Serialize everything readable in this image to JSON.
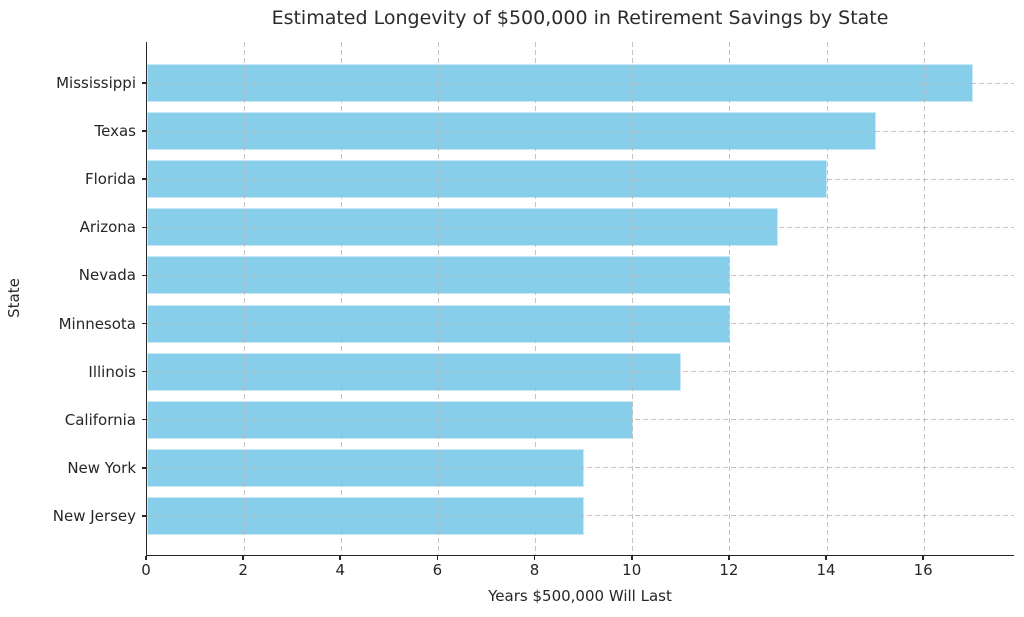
{
  "chart_data": {
    "type": "bar",
    "orientation": "horizontal",
    "title": "Estimated Longevity of $500,000 in Retirement Savings by State",
    "xlabel": "Years $500,000 Will Last",
    "ylabel": "State",
    "categories": [
      "Mississippi",
      "Texas",
      "Florida",
      "Arizona",
      "Nevada",
      "Minnesota",
      "Illinois",
      "California",
      "New York",
      "New Jersey"
    ],
    "values": [
      17,
      15,
      14,
      13,
      12,
      12,
      11,
      10,
      9,
      9
    ],
    "xticks": [
      0,
      2,
      4,
      6,
      8,
      10,
      12,
      14,
      16
    ],
    "xlim": [
      0,
      17.87
    ],
    "grid": "dashed, both axes, drawn over bars",
    "legend": "none",
    "colors": {
      "bar": "#87CEEB",
      "grid": "#b9b9b9",
      "axis": "#262626",
      "text": "#262626",
      "background": "#ffffff"
    }
  }
}
